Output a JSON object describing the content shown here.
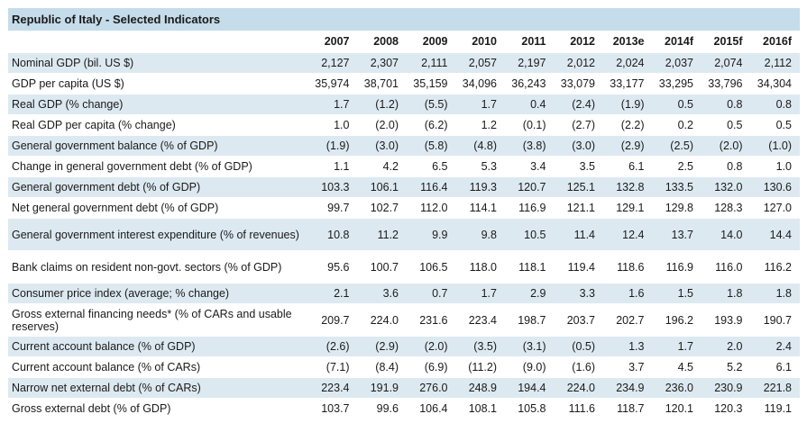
{
  "title": "Republic of Italy - Selected Indicators",
  "columns": [
    "2007",
    "2008",
    "2009",
    "2010",
    "2011",
    "2012",
    "2013e",
    "2014f",
    "2015f",
    "2016f"
  ],
  "rows": [
    {
      "label": "Nominal GDP (bil. US $)",
      "values": [
        "2,127",
        "2,307",
        "2,111",
        "2,057",
        "2,197",
        "2,012",
        "2,024",
        "2,037",
        "2,074",
        "2,112"
      ]
    },
    {
      "label": "GDP per capita (US $)",
      "values": [
        "35,974",
        "38,701",
        "35,159",
        "34,096",
        "36,243",
        "33,079",
        "33,177",
        "33,295",
        "33,796",
        "34,304"
      ]
    },
    {
      "label": "Real GDP (% change)",
      "values": [
        "1.7",
        "(1.2)",
        "(5.5)",
        "1.7",
        "0.4",
        "(2.4)",
        "(1.9)",
        "0.5",
        "0.8",
        "0.8"
      ]
    },
    {
      "label": "Real GDP per capita (% change)",
      "values": [
        "1.0",
        "(2.0)",
        "(6.2)",
        "1.2",
        "(0.1)",
        "(2.7)",
        "(2.2)",
        "0.2",
        "0.5",
        "0.5"
      ]
    },
    {
      "label": "General government balance (% of GDP)",
      "values": [
        "(1.9)",
        "(3.0)",
        "(5.8)",
        "(4.8)",
        "(3.8)",
        "(3.0)",
        "(2.9)",
        "(2.5)",
        "(2.0)",
        "(1.0)"
      ]
    },
    {
      "label": "Change in general government debt (% of GDP)",
      "values": [
        "1.1",
        "4.2",
        "6.5",
        "5.3",
        "3.4",
        "3.5",
        "6.1",
        "2.5",
        "0.8",
        "1.0"
      ]
    },
    {
      "label": "General government debt (% of GDP)",
      "values": [
        "103.3",
        "106.1",
        "116.4",
        "119.3",
        "120.7",
        "125.1",
        "132.8",
        "133.5",
        "132.0",
        "130.6"
      ]
    },
    {
      "label": "Net general government debt (% of GDP)",
      "values": [
        "99.7",
        "102.7",
        "112.0",
        "114.1",
        "116.9",
        "121.1",
        "129.1",
        "129.8",
        "128.3",
        "127.0"
      ]
    },
    {
      "label": "General government interest expenditure (% of revenues)",
      "values": [
        "10.8",
        "11.2",
        "9.9",
        "9.8",
        "10.5",
        "11.4",
        "12.4",
        "13.7",
        "14.0",
        "14.4"
      ]
    },
    {
      "label": "Bank claims on resident non-govt. sectors (% of GDP)",
      "values": [
        "95.6",
        "100.7",
        "106.5",
        "118.0",
        "118.1",
        "119.4",
        "118.6",
        "116.9",
        "116.0",
        "116.2"
      ]
    },
    {
      "label": "Consumer price index (average; % change)",
      "values": [
        "2.1",
        "3.6",
        "0.7",
        "1.7",
        "2.9",
        "3.3",
        "1.6",
        "1.5",
        "1.8",
        "1.8"
      ]
    },
    {
      "label": "Gross external financing needs* (% of CARs and usable reserves)",
      "values": [
        "209.7",
        "224.0",
        "231.6",
        "223.4",
        "198.7",
        "203.7",
        "202.7",
        "196.2",
        "193.9",
        "190.7"
      ]
    },
    {
      "label": "Current account balance (% of GDP)",
      "values": [
        "(2.6)",
        "(2.9)",
        "(2.0)",
        "(3.5)",
        "(3.1)",
        "(0.5)",
        "1.3",
        "1.7",
        "2.0",
        "2.4"
      ]
    },
    {
      "label": "Current account balance (% of CARs)",
      "values": [
        "(7.1)",
        "(8.4)",
        "(6.9)",
        "(11.2)",
        "(9.0)",
        "(1.6)",
        "3.7",
        "4.5",
        "5.2",
        "6.1"
      ]
    },
    {
      "label": "Narrow net external debt (% of CARs)",
      "values": [
        "223.4",
        "191.9",
        "276.0",
        "248.9",
        "194.4",
        "224.0",
        "234.9",
        "236.0",
        "230.9",
        "221.8"
      ]
    },
    {
      "label": "Gross external debt (% of GDP)",
      "values": [
        "103.7",
        "99.6",
        "106.4",
        "108.1",
        "105.8",
        "111.6",
        "118.7",
        "120.1",
        "120.3",
        "119.1"
      ]
    }
  ],
  "colors": {
    "title_bg": "#c5dcea",
    "shaded_row": "#dde9f1"
  }
}
